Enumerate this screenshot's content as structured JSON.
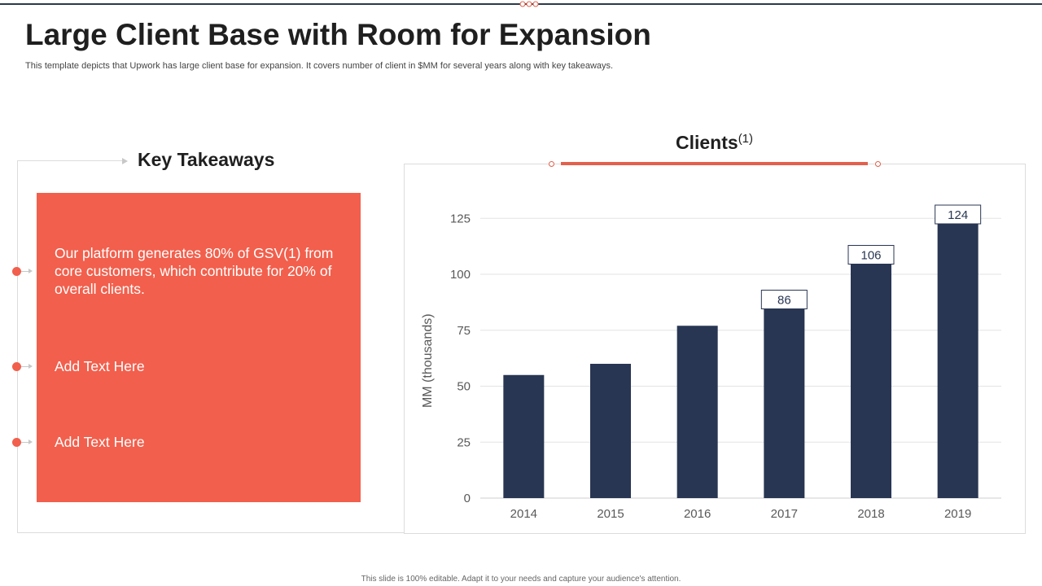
{
  "header": {
    "title": "Large Client Base with Room for Expansion",
    "subtitle": "This template depicts that Upwork has large client base for expansion. It covers number of client in $MM  for several years along with key takeaways."
  },
  "takeaways": {
    "heading": "Key Takeaways",
    "items": [
      {
        "text": "Our platform generates 80% of GSV(1) from core customers, which contribute for 20% of overall clients."
      },
      {
        "text": "Add Text Here"
      },
      {
        "text": "Add Text Here"
      }
    ]
  },
  "chart_section": {
    "heading": "Clients",
    "heading_superscript": "(1)"
  },
  "chart_data": {
    "type": "bar",
    "categories": [
      "2014",
      "2015",
      "2016",
      "2017",
      "2018",
      "2019"
    ],
    "series": [
      {
        "values": [
          55,
          60,
          77,
          86,
          106,
          124
        ]
      }
    ],
    "data_labels": [
      {
        "index": 3,
        "text": "86"
      },
      {
        "index": 4,
        "text": "106"
      },
      {
        "index": 5,
        "text": "124"
      }
    ],
    "ylabel": "MM (thousands)",
    "xlabel": "",
    "ylim": [
      0,
      130
    ],
    "yticks": [
      0,
      25,
      50,
      75,
      100,
      125
    ],
    "grid": true,
    "legend": "none",
    "bar_color": "#283653"
  },
  "colors": {
    "accent": "#f25f4c",
    "bar": "#283653",
    "navy": "#2b3a4a"
  },
  "footer": {
    "text": "This slide is 100% editable.  Adapt it to your needs and capture your audience's attention."
  }
}
